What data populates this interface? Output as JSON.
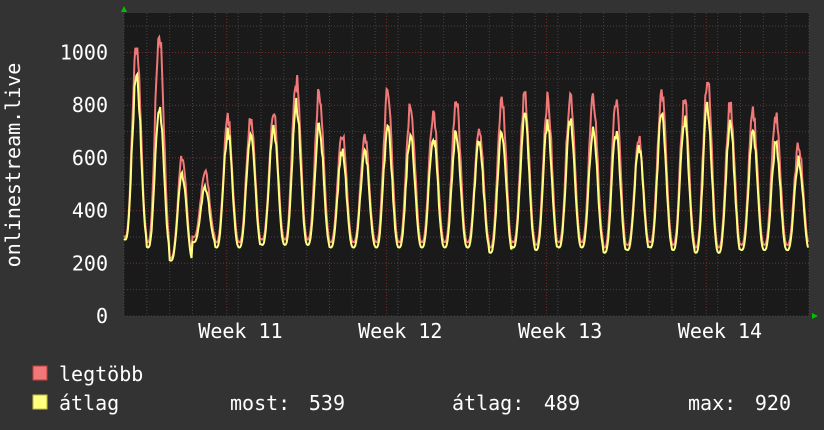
{
  "chart_data": {
    "type": "line",
    "ylabel": "onlinestream.live",
    "ylim": [
      0,
      1150
    ],
    "y_ticks": [
      "0",
      "200",
      "400",
      "600",
      "800",
      "1000"
    ],
    "x_ticks": [
      "Week 11",
      "Week 12",
      "Week 13",
      "Week 14"
    ],
    "grid": true,
    "colors": {
      "background": "#333333",
      "plot": "#1a1a1a",
      "grid_minor": "#444444",
      "grid_major": "#7a2a2a",
      "axis_arrow": "#00c000",
      "max_line": "#f07878",
      "avg_line": "#ffff80"
    },
    "days": 30,
    "series": [
      {
        "name": "legtöbb",
        "color": "#f07878",
        "daily_peak": [
          1030,
          1075,
          600,
          550,
          750,
          760,
          770,
          890,
          850,
          700,
          670,
          850,
          800,
          780,
          820,
          720,
          820,
          830,
          820,
          840,
          820,
          810,
          680,
          850,
          820,
          900,
          800,
          770,
          760,
          650
        ],
        "daily_low": [
          300,
          280,
          220,
          300,
          280,
          280,
          290,
          290,
          290,
          280,
          280,
          280,
          280,
          280,
          280,
          280,
          260,
          280,
          270,
          280,
          280,
          260,
          270,
          280,
          270,
          260,
          260,
          270,
          270,
          270
        ]
      },
      {
        "name": "átlag",
        "color": "#ffff80",
        "daily_peak": [
          920,
          790,
          540,
          490,
          700,
          700,
          720,
          800,
          720,
          620,
          620,
          710,
          690,
          680,
          700,
          660,
          700,
          750,
          720,
          740,
          700,
          690,
          640,
          760,
          740,
          790,
          720,
          690,
          650,
          590
        ],
        "daily_low": [
          290,
          260,
          210,
          280,
          260,
          260,
          270,
          270,
          270,
          260,
          260,
          260,
          260,
          260,
          260,
          260,
          240,
          260,
          250,
          260,
          260,
          240,
          250,
          260,
          250,
          240,
          240,
          250,
          250,
          250
        ]
      }
    ]
  },
  "legend": {
    "max_label": "legtöbb",
    "avg_label": "átlag",
    "now_label": "most:",
    "now_value": "539",
    "avg_stat_label": "átlag:",
    "avg_stat_value": "489",
    "max_stat_label": "max:",
    "max_stat_value": "920"
  }
}
